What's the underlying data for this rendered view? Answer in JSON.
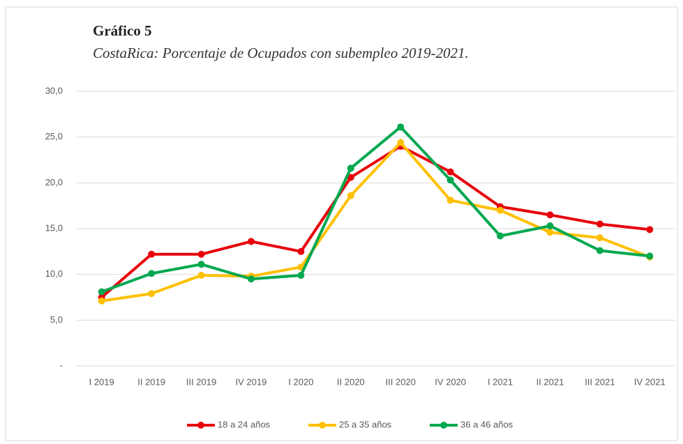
{
  "chart_data": {
    "type": "line",
    "title": "Gráfico 5",
    "subtitle": "CostaRica: Porcentaje de Ocupados con subempleo 2019-2021.",
    "categories": [
      "I 2019",
      "II 2019",
      "III 2019",
      "IV 2019",
      "I 2020",
      "II 2020",
      "III 2020",
      "IV 2020",
      "I 2021",
      "II 2021",
      "III 2021",
      "IV 2021"
    ],
    "series": [
      {
        "name": "18 a 24 años",
        "color": "#e8000b",
        "values": [
          7.5,
          12.2,
          12.2,
          13.6,
          12.5,
          20.6,
          24.0,
          21.2,
          17.4,
          16.5,
          15.5,
          14.9
        ]
      },
      {
        "name": "25 a 35 años",
        "color": "#ffc000",
        "values": [
          7.1,
          7.9,
          9.9,
          9.8,
          10.8,
          18.6,
          24.4,
          18.1,
          17.0,
          14.6,
          14.0,
          11.9
        ]
      },
      {
        "name": "36 a 46 años",
        "color": "#00a84f",
        "values": [
          8.1,
          10.1,
          11.1,
          9.5,
          9.9,
          21.6,
          26.1,
          20.3,
          14.2,
          15.3,
          12.6,
          12.0
        ]
      }
    ],
    "ylim": [
      0,
      30
    ],
    "yticks": [
      {
        "value": 0,
        "label": "-"
      },
      {
        "value": 5,
        "label": "5,0"
      },
      {
        "value": 10,
        "label": "10,0"
      },
      {
        "value": 15,
        "label": "15,0"
      },
      {
        "value": 20,
        "label": "20,0"
      },
      {
        "value": 25,
        "label": "25,0"
      },
      {
        "value": 30,
        "label": "30,0"
      }
    ],
    "grid": true,
    "legend": "bottom"
  }
}
